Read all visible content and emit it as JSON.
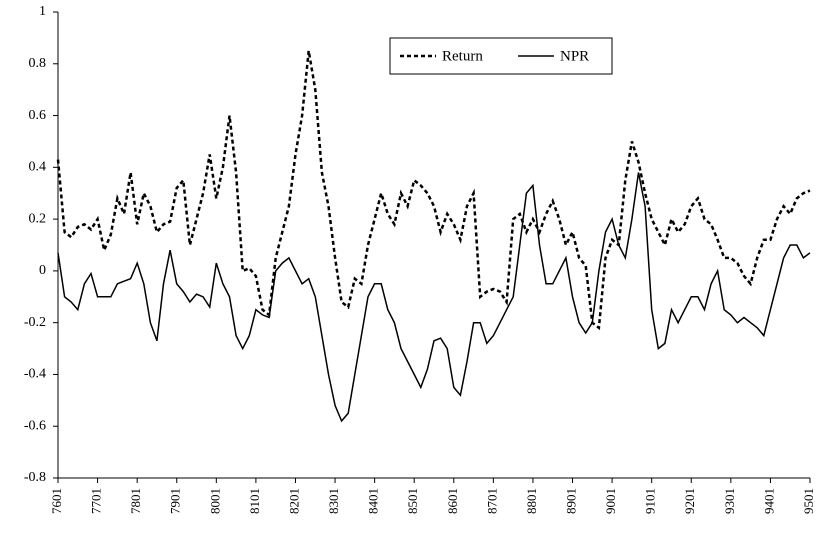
{
  "chart_data": {
    "type": "line",
    "categories": [
      "7601",
      null,
      null,
      null,
      null,
      null,
      "7701",
      null,
      null,
      null,
      null,
      null,
      "7801",
      null,
      null,
      null,
      null,
      null,
      "7901",
      null,
      null,
      null,
      null,
      null,
      "8001",
      null,
      null,
      null,
      null,
      null,
      "8101",
      null,
      null,
      null,
      null,
      null,
      "8201",
      null,
      null,
      null,
      null,
      null,
      "8301",
      null,
      null,
      null,
      null,
      null,
      "8401",
      null,
      null,
      null,
      null,
      null,
      "8501",
      null,
      null,
      null,
      null,
      null,
      "8601",
      null,
      null,
      null,
      null,
      null,
      "8701",
      null,
      null,
      null,
      null,
      null,
      "8801",
      null,
      null,
      null,
      null,
      null,
      "8901",
      null,
      null,
      null,
      null,
      null,
      "9001",
      null,
      null,
      null,
      null,
      null,
      "9101",
      null,
      null,
      null,
      null,
      null,
      "9201",
      null,
      null,
      null,
      null,
      null,
      "9301",
      null,
      null,
      null,
      null,
      null,
      "9401",
      null,
      null,
      null,
      null,
      null,
      "9501"
    ],
    "series": [
      {
        "name": "Return",
        "color": "#000000",
        "style": "dashed",
        "values": [
          0.43,
          0.15,
          0.13,
          0.17,
          0.18,
          0.16,
          0.2,
          0.08,
          0.14,
          0.28,
          0.22,
          0.38,
          0.18,
          0.3,
          0.25,
          0.15,
          0.18,
          0.19,
          0.32,
          0.35,
          0.1,
          0.2,
          0.3,
          0.45,
          0.28,
          0.4,
          0.6,
          0.38,
          0.0,
          0.01,
          -0.02,
          -0.15,
          -0.17,
          0.05,
          0.15,
          0.25,
          0.45,
          0.6,
          0.85,
          0.7,
          0.38,
          0.25,
          0.05,
          -0.12,
          -0.14,
          -0.03,
          -0.05,
          0.1,
          0.2,
          0.3,
          0.22,
          0.18,
          0.3,
          0.25,
          0.35,
          0.33,
          0.3,
          0.25,
          0.15,
          0.22,
          0.18,
          0.12,
          0.25,
          0.3,
          -0.1,
          -0.08,
          -0.07,
          -0.08,
          -0.12,
          0.2,
          0.22,
          0.15,
          0.2,
          0.15,
          0.22,
          0.27,
          0.2,
          0.1,
          0.15,
          0.05,
          0.02,
          -0.2,
          -0.22,
          0.05,
          0.12,
          0.1,
          0.35,
          0.5,
          0.42,
          0.3,
          0.2,
          0.15,
          0.1,
          0.2,
          0.15,
          0.18,
          0.25,
          0.28,
          0.2,
          0.18,
          0.12,
          0.05,
          0.05,
          0.03,
          -0.02,
          -0.05,
          0.05,
          0.12,
          0.12,
          0.2,
          0.25,
          0.22,
          0.28,
          0.3,
          0.31
        ]
      },
      {
        "name": "NPR",
        "color": "#000000",
        "style": "solid",
        "values": [
          0.07,
          -0.1,
          -0.12,
          -0.15,
          -0.05,
          -0.01,
          -0.1,
          -0.1,
          -0.1,
          -0.05,
          -0.04,
          -0.03,
          0.03,
          -0.05,
          -0.2,
          -0.27,
          -0.05,
          0.08,
          -0.05,
          -0.08,
          -0.12,
          -0.09,
          -0.1,
          -0.14,
          0.03,
          -0.05,
          -0.1,
          -0.25,
          -0.3,
          -0.25,
          -0.15,
          -0.17,
          -0.18,
          0.0,
          0.03,
          0.05,
          0.0,
          -0.05,
          -0.03,
          -0.1,
          -0.25,
          -0.4,
          -0.52,
          -0.58,
          -0.55,
          -0.4,
          -0.25,
          -0.1,
          -0.05,
          -0.05,
          -0.15,
          -0.2,
          -0.3,
          -0.35,
          -0.4,
          -0.45,
          -0.38,
          -0.27,
          -0.26,
          -0.3,
          -0.45,
          -0.48,
          -0.35,
          -0.2,
          -0.2,
          -0.28,
          -0.25,
          -0.2,
          -0.15,
          -0.1,
          0.1,
          0.3,
          0.33,
          0.1,
          -0.05,
          -0.05,
          0.0,
          0.05,
          -0.1,
          -0.2,
          -0.24,
          -0.2,
          0.0,
          0.15,
          0.2,
          0.1,
          0.05,
          0.2,
          0.38,
          0.25,
          -0.15,
          -0.3,
          -0.28,
          -0.15,
          -0.2,
          -0.15,
          -0.1,
          -0.1,
          -0.15,
          -0.05,
          0.0,
          -0.15,
          -0.17,
          -0.2,
          -0.18,
          -0.2,
          -0.22,
          -0.25,
          -0.15,
          -0.05,
          0.05,
          0.1,
          0.1,
          0.05,
          0.07
        ]
      }
    ],
    "ylim": [
      -0.8,
      1
    ],
    "yticks": [
      -0.8,
      -0.6,
      -0.4,
      -0.2,
      0,
      0.2,
      0.4,
      0.6,
      0.8,
      1
    ],
    "grid": false,
    "legend": "top"
  }
}
